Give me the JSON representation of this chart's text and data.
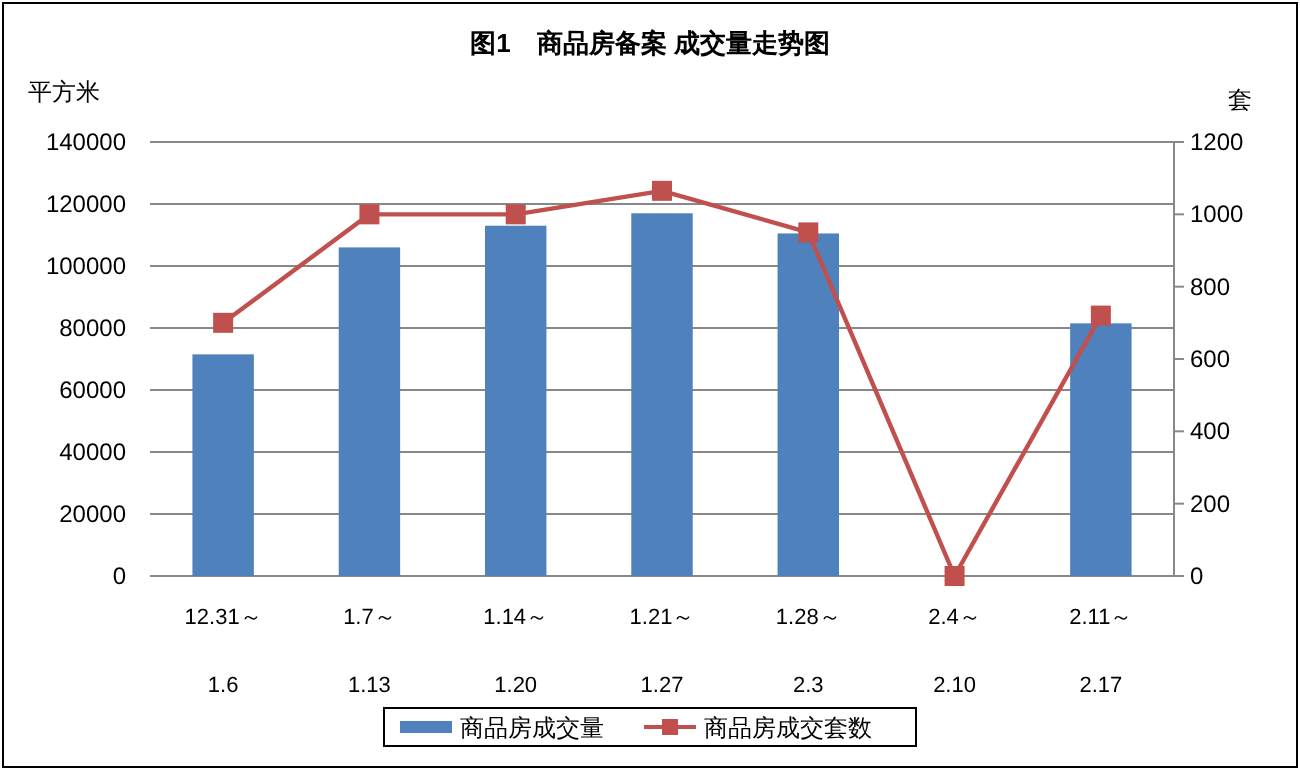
{
  "chart_data": {
    "type": "bar",
    "title": "图1　商品房备案 成交量走势图",
    "ylabel": "平方米",
    "y2label": "套",
    "categories": [
      "12.31～\n1.6",
      "1.7～\n1.13",
      "1.14～\n1.20",
      "1.21～\n1.27",
      "1.28～\n2.3",
      "2.4～\n2.10",
      "2.11～\n2.17"
    ],
    "series": [
      {
        "name": "商品房成交量",
        "color": "#4f81bd",
        "values": [
          71500,
          106000,
          113000,
          117000,
          110500,
          0,
          81500
        ]
      },
      {
        "name": "商品房成交套数",
        "type": "line",
        "axis": "y2",
        "color": "#c0504d",
        "marker": "square",
        "values": [
          700,
          1000,
          1000,
          1065,
          950,
          0,
          720
        ]
      }
    ],
    "ylim": [
      0,
      140000
    ],
    "yticks": [
      0,
      20000,
      40000,
      60000,
      80000,
      100000,
      120000,
      140000
    ],
    "y2lim": [
      0,
      1200
    ],
    "y2ticks": [
      0,
      200,
      400,
      600,
      800,
      1000,
      1200
    ],
    "grid": "y",
    "legend": "bottom"
  }
}
